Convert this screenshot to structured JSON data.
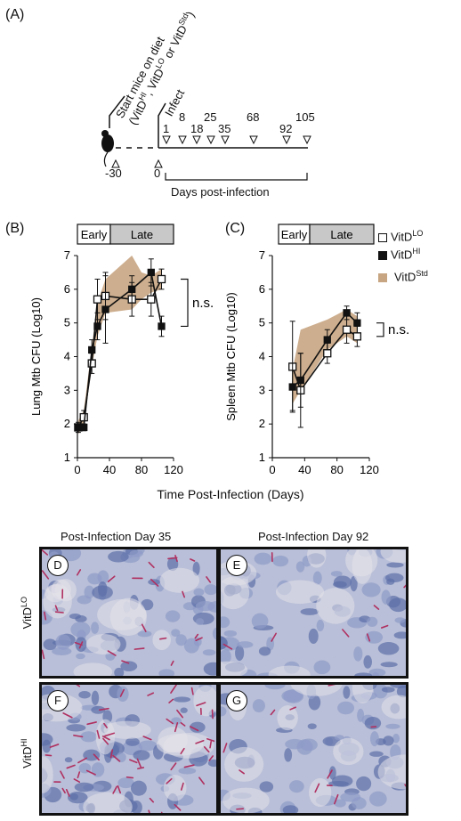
{
  "panel_labels": [
    "(A)",
    "(B)",
    "(C)"
  ],
  "timeline": {
    "diet_text_line1": "Start mice on diet",
    "diet_text_line2_a": "(VitD",
    "diet_text_line2_hi": "HI",
    "diet_text_line2_b": ", VitD",
    "diet_text_line2_lo": "LO",
    "diet_text_line2_c": " or VitD",
    "diet_text_line2_std": "Std",
    "diet_text_line2_d": ")",
    "infect_label": "Infect",
    "start_day": "-30",
    "zero_day": "0",
    "sample_days": [
      "1",
      "8",
      "18",
      "25",
      "35",
      "68",
      "92",
      "105"
    ],
    "axis_label": "Days post-infection"
  },
  "phase_bar": {
    "early": "Early",
    "late": "Late"
  },
  "legend": {
    "lo": "VitD",
    "lo_sup": "LO",
    "hi": "VitD",
    "hi_sup": "HI",
    "std": "VitD",
    "std_sup": "Std"
  },
  "colors": {
    "std_band": "#c8a582",
    "phase_late": "#c8c8c8",
    "stain": "#b03060"
  },
  "shared_xlabel": "Time Post-Infection (Days)",
  "chart_data": [
    {
      "type": "line",
      "ylabel": "Lung Mtb CFU (Log10)",
      "xlim": [
        0,
        120
      ],
      "ylim": [
        1,
        7
      ],
      "xticks": [
        "0",
        "40",
        "80",
        "120"
      ],
      "yticks": [
        "1",
        "2",
        "3",
        "4",
        "5",
        "6",
        "7"
      ],
      "annotation": "n.s.",
      "series": [
        {
          "name": "VitDLO",
          "x": [
            1,
            8,
            18,
            25,
            35,
            68,
            92,
            105
          ],
          "y": [
            1.9,
            2.2,
            3.8,
            5.7,
            5.8,
            5.7,
            5.7,
            6.3
          ],
          "err": [
            0.15,
            0.2,
            0.3,
            0.6,
            0.7,
            0.5,
            0.5,
            0.3
          ]
        },
        {
          "name": "VitDHI",
          "x": [
            1,
            8,
            18,
            25,
            35,
            68,
            92,
            105
          ],
          "y": [
            1.9,
            1.9,
            4.2,
            4.9,
            5.4,
            6.0,
            6.5,
            4.9
          ],
          "err": [
            0.1,
            0.1,
            0.3,
            0.4,
            1.0,
            0.4,
            0.4,
            0.3
          ]
        },
        {
          "name": "VitDStd",
          "x": [
            1,
            8,
            18,
            25,
            35,
            68,
            80,
            92,
            105
          ],
          "upper": [
            2.1,
            2.4,
            4.3,
            5.6,
            6.3,
            7.0,
            6.5,
            6.4,
            6.6
          ],
          "lower": [
            1.7,
            2.0,
            3.7,
            4.6,
            5.3,
            5.4,
            5.7,
            5.9,
            6.0
          ]
        }
      ]
    },
    {
      "type": "line",
      "ylabel": "Spleen Mtb CFU (Log10)",
      "xlim": [
        0,
        120
      ],
      "ylim": [
        1,
        7
      ],
      "xticks": [
        "0",
        "40",
        "80",
        "120"
      ],
      "yticks": [
        "1",
        "2",
        "3",
        "4",
        "5",
        "6",
        "7"
      ],
      "annotation": "n.s.",
      "series": [
        {
          "name": "VitDLO",
          "x": [
            25,
            35,
            68,
            92,
            105
          ],
          "y": [
            3.7,
            3.0,
            4.1,
            4.8,
            4.6
          ],
          "err": [
            1.35,
            1.1,
            0.3,
            0.4,
            0.3
          ]
        },
        {
          "name": "VitDHI",
          "x": [
            25,
            35,
            68,
            92,
            105
          ],
          "y": [
            3.1,
            3.3,
            4.5,
            5.3,
            5.0
          ],
          "err": [
            0.7,
            0.8,
            0.3,
            0.2,
            0.3
          ]
        },
        {
          "name": "VitDStd",
          "x": [
            25,
            35,
            68,
            92,
            105
          ],
          "upper": [
            3.6,
            4.8,
            5.1,
            5.4,
            5.2
          ],
          "lower": [
            2.6,
            3.0,
            4.2,
            4.6,
            4.4
          ]
        }
      ]
    }
  ],
  "micro": {
    "col_titles": [
      "Post-Infection Day 35",
      "Post-Infection Day 92"
    ],
    "row_lo": "VitD",
    "row_lo_sup": "LO",
    "row_hi": "VitD",
    "row_hi_sup": "HI",
    "labels": [
      "D",
      "E",
      "F",
      "G"
    ]
  }
}
